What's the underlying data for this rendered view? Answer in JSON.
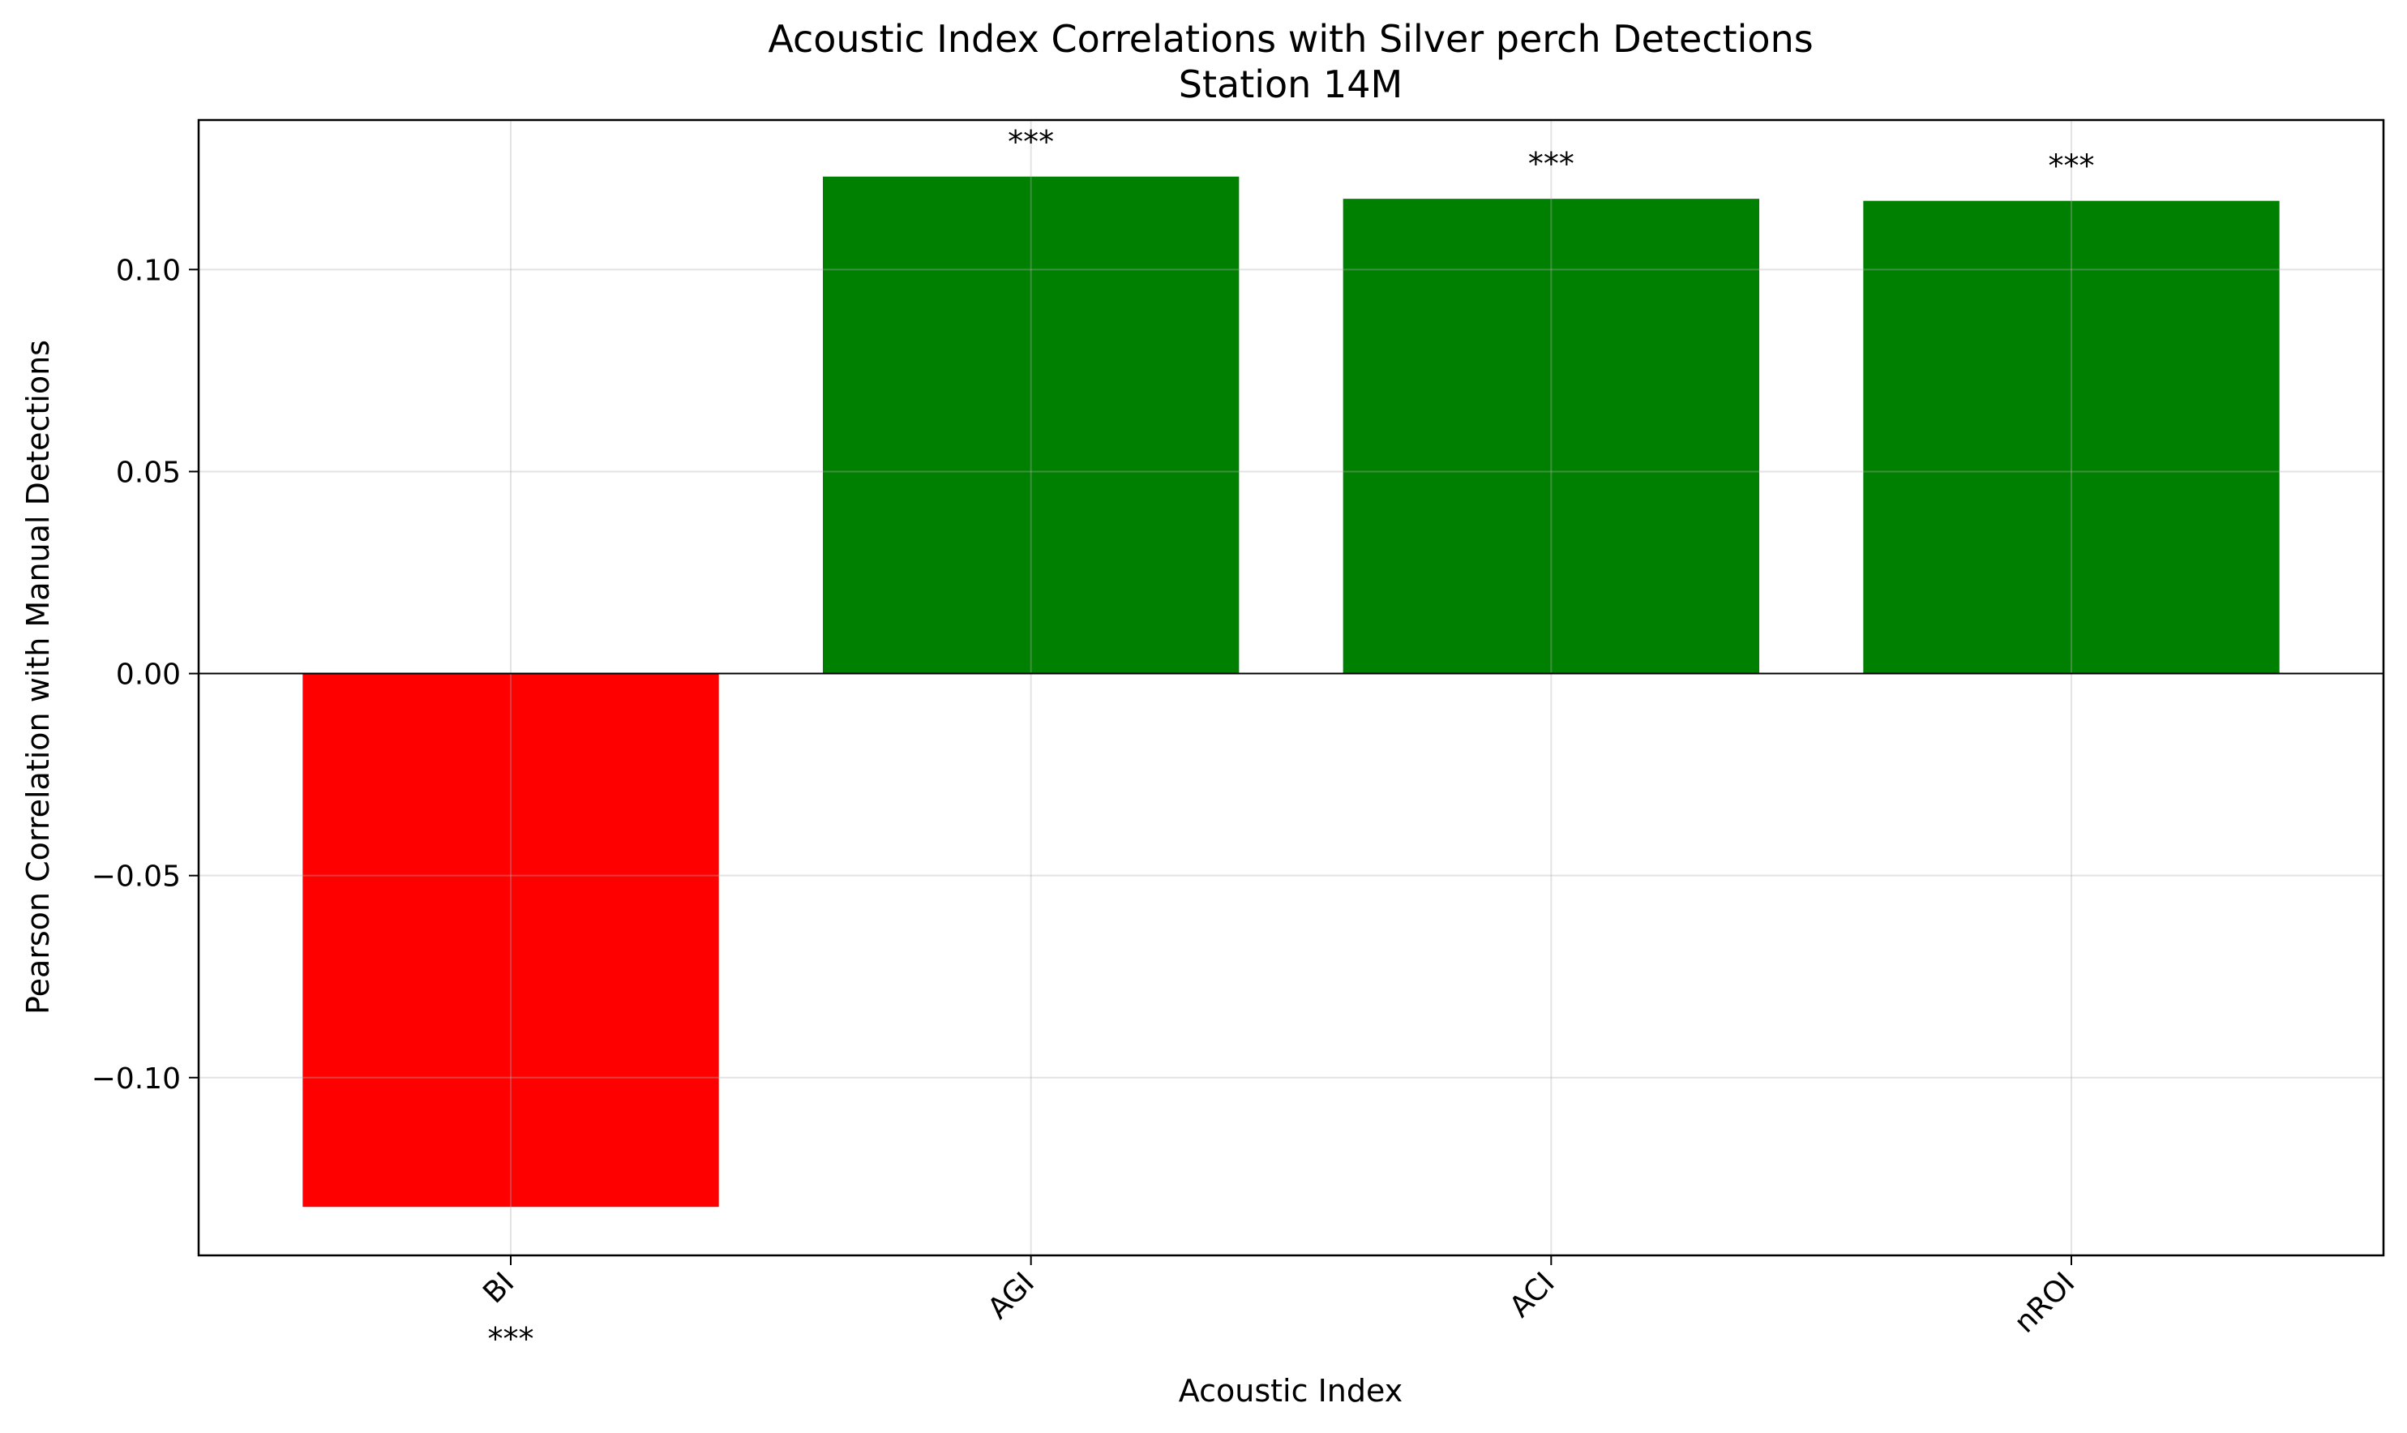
{
  "chart_data": {
    "type": "bar",
    "title": "Acoustic Index Correlations with Silver perch Detections",
    "subtitle": "Station 14M",
    "xlabel": "Acoustic Index",
    "ylabel": "Pearson Correlation with Manual Detections",
    "categories": [
      "BI",
      "AGI",
      "ACI",
      "nROI"
    ],
    "values": [
      -0.132,
      0.123,
      0.1175,
      0.117
    ],
    "significance": [
      "***",
      "***",
      "***",
      "***"
    ],
    "ylim": [
      -0.144,
      0.137
    ],
    "yticks": [
      -0.1,
      -0.05,
      0.0,
      0.05,
      0.1
    ],
    "ytick_labels": [
      "−0.10",
      "−0.05",
      "0.00",
      "0.05",
      "0.10"
    ],
    "colors": {
      "positive": "#008000",
      "negative": "#ff0000"
    },
    "grid": true,
    "legend": "none"
  }
}
